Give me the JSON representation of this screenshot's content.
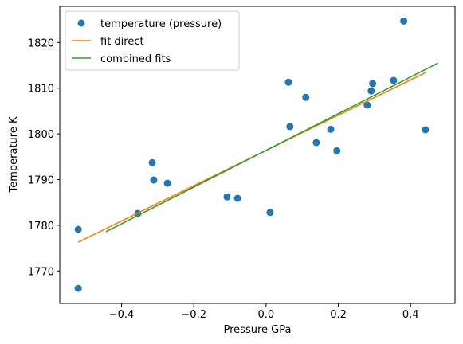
{
  "chart_data": {
    "type": "scatter",
    "xlabel": "Pressure GPa",
    "ylabel": "Temperature K",
    "xlim": [
      -0.571,
      0.523
    ],
    "ylim": [
      1762.9,
      1827.9
    ],
    "xticks": [
      {
        "value": -0.4,
        "label": "−0.4"
      },
      {
        "value": -0.2,
        "label": "−0.2"
      },
      {
        "value": 0,
        "label": "0.0"
      },
      0.2,
      0.4
    ],
    "yticks": [
      1770,
      1780,
      1790,
      1800,
      1810,
      1820
    ],
    "legend": "upper left",
    "series": [
      {
        "name": "temperature (pressure)",
        "type": "scatter",
        "color": "#1f77b4",
        "x": [
          -0.52,
          -0.52,
          -0.355,
          -0.315,
          -0.311,
          -0.273,
          -0.108,
          -0.079,
          0.011,
          0.062,
          0.066,
          0.11,
          0.139,
          0.179,
          0.196,
          0.28,
          0.291,
          0.295,
          0.353,
          0.381,
          0.441
        ],
        "values": [
          1779.1,
          1766.2,
          1782.6,
          1793.7,
          1789.9,
          1789.2,
          1786.2,
          1785.9,
          1782.8,
          1811.3,
          1801.6,
          1808.0,
          1798.1,
          1801.0,
          1796.3,
          1806.3,
          1809.4,
          1811.0,
          1811.7,
          1824.7,
          1800.9
        ]
      },
      {
        "name": "fit direct",
        "type": "line",
        "color": "#ff7f0e",
        "x": [
          -0.52,
          0.441
        ],
        "values": [
          1776.3,
          1813.4
        ]
      },
      {
        "name": "combined fits",
        "type": "line",
        "color": "#2ca02c",
        "x": [
          -0.443,
          0.476
        ],
        "values": [
          1778.6,
          1815.5
        ]
      }
    ]
  }
}
